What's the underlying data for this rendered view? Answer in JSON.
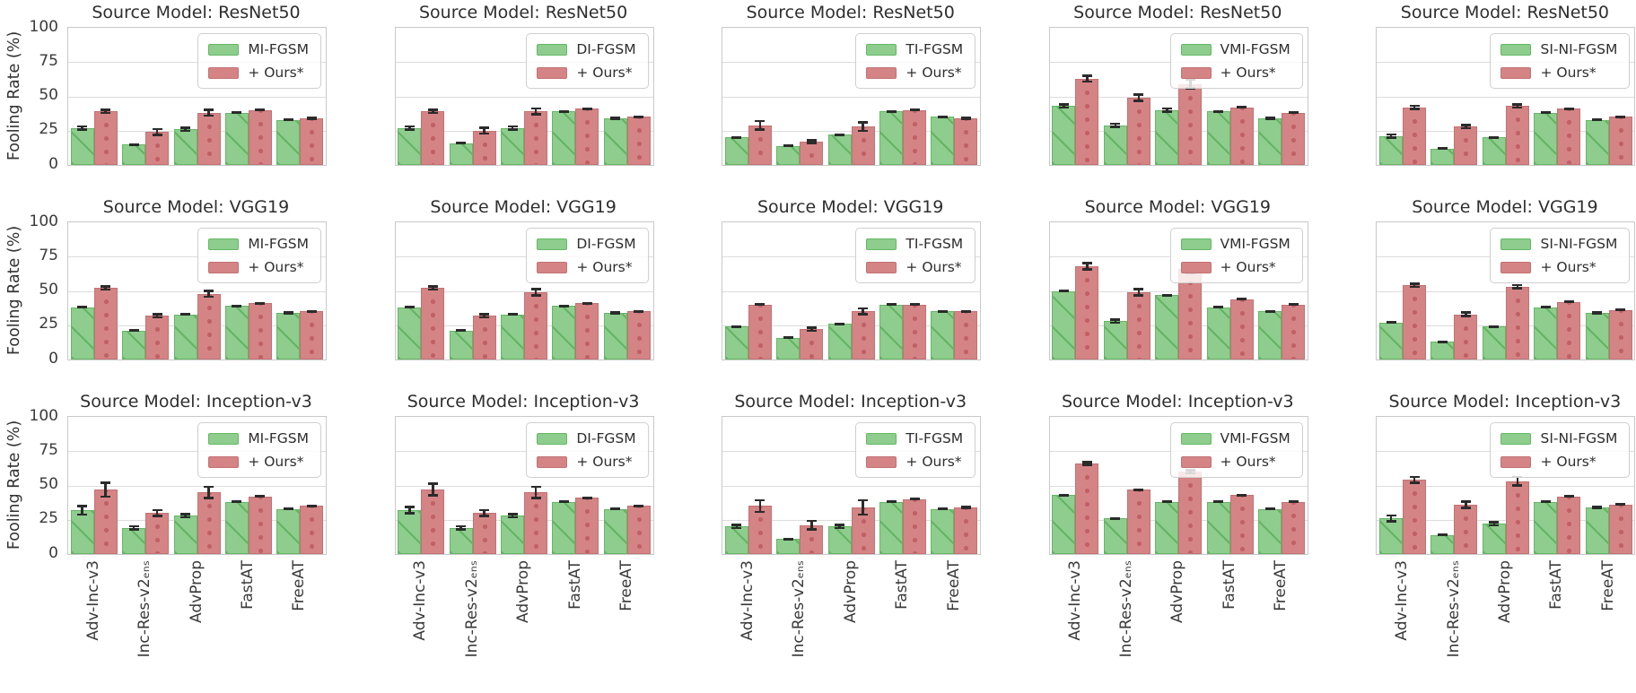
{
  "figure": {
    "ylabel": "Fooling Rate (%)",
    "row_titles": [
      "Source Model: ResNet50",
      "Source Model: VGG19",
      "Source Model: Inception-v3"
    ],
    "column_methods": [
      "MI-FGSM",
      "DI-FGSM",
      "TI-FGSM",
      "VMI-FGSM",
      "SI-NI-FGSM"
    ],
    "ours_label": "+ Ours*"
  },
  "chart_data": {
    "type": "bar",
    "layout": {
      "rows": 3,
      "cols": 5
    },
    "ylabel": "Fooling Rate (%)",
    "ylim": [
      0,
      100
    ],
    "yticks": [
      0,
      25,
      50,
      75,
      100
    ],
    "grid": true,
    "legend_position": "upper right",
    "categories": [
      "Adv-Inc-v3",
      "Inc-Res-v2ₑₙₛ",
      "AdvProp",
      "FastAT",
      "FreeAT"
    ],
    "colors": {
      "baseline_fill": "#8ecd8e",
      "baseline_edge": "#63b863",
      "ours_fill": "#d58486",
      "ours_edge": "#c37173",
      "error_bar": "#2b2b2b",
      "grid_line": "#dcdcdc",
      "frame": "#c9c9c9"
    },
    "subplots": [
      {
        "row": 0,
        "col": 0,
        "title": "Source Model: ResNet50",
        "series": [
          {
            "name": "MI-FGSM",
            "values": [
              27,
              15,
              26,
              38,
              33
            ],
            "errors": [
              2,
              1,
              2,
              1,
              1
            ]
          },
          {
            "name": "+ Ours*",
            "values": [
              39,
              24,
              38,
              40,
              34
            ],
            "errors": [
              2,
              3,
              3,
              1,
              1
            ]
          }
        ]
      },
      {
        "row": 0,
        "col": 1,
        "title": "Source Model: ResNet50",
        "series": [
          {
            "name": "DI-FGSM",
            "values": [
              27,
              16,
              27,
              39,
              34
            ],
            "errors": [
              2,
              1,
              2,
              1,
              1
            ]
          },
          {
            "name": "+ Ours*",
            "values": [
              39,
              25,
              39,
              41,
              35
            ],
            "errors": [
              2,
              3,
              3,
              1,
              1
            ]
          }
        ]
      },
      {
        "row": 0,
        "col": 2,
        "title": "Source Model: ResNet50",
        "series": [
          {
            "name": "TI-FGSM",
            "values": [
              20,
              14,
              22,
              39,
              35
            ],
            "errors": [
              1,
              1,
              1,
              1,
              1
            ]
          },
          {
            "name": "+ Ours*",
            "values": [
              29,
              17,
              28,
              40,
              34
            ],
            "errors": [
              4,
              2,
              4,
              1,
              1
            ]
          }
        ]
      },
      {
        "row": 0,
        "col": 3,
        "title": "Source Model: ResNet50",
        "series": [
          {
            "name": "VMI-FGSM",
            "values": [
              43,
              29,
              40,
              39,
              34
            ],
            "errors": [
              2,
              2,
              2,
              1,
              1
            ]
          },
          {
            "name": "+ Ours*",
            "values": [
              63,
              49,
              59,
              42,
              38
            ],
            "errors": [
              3,
              3,
              4,
              1,
              1
            ]
          }
        ]
      },
      {
        "row": 0,
        "col": 4,
        "title": "Source Model: ResNet50",
        "series": [
          {
            "name": "SI-NI-FGSM",
            "values": [
              21,
              12,
              20,
              38,
              33
            ],
            "errors": [
              2,
              1,
              1,
              1,
              1
            ]
          },
          {
            "name": "+ Ours*",
            "values": [
              42,
              28,
              43,
              41,
              35
            ],
            "errors": [
              2,
              2,
              2,
              1,
              1
            ]
          }
        ]
      },
      {
        "row": 1,
        "col": 0,
        "title": "Source Model: VGG19",
        "series": [
          {
            "name": "MI-FGSM",
            "values": [
              38,
              21,
              33,
              39,
              34
            ],
            "errors": [
              1,
              1,
              1,
              1,
              1
            ]
          },
          {
            "name": "+ Ours*",
            "values": [
              52,
              32,
              48,
              41,
              35
            ],
            "errors": [
              2,
              2,
              3,
              1,
              1
            ]
          }
        ]
      },
      {
        "row": 1,
        "col": 1,
        "title": "Source Model: VGG19",
        "series": [
          {
            "name": "DI-FGSM",
            "values": [
              38,
              21,
              33,
              39,
              34
            ],
            "errors": [
              1,
              1,
              1,
              1,
              1
            ]
          },
          {
            "name": "+ Ours*",
            "values": [
              52,
              32,
              49,
              41,
              35
            ],
            "errors": [
              2,
              2,
              3,
              1,
              1
            ]
          }
        ]
      },
      {
        "row": 1,
        "col": 2,
        "title": "Source Model: VGG19",
        "series": [
          {
            "name": "TI-FGSM",
            "values": [
              24,
              16,
              26,
              40,
              35
            ],
            "errors": [
              1,
              1,
              1,
              1,
              1
            ]
          },
          {
            "name": "+ Ours*",
            "values": [
              40,
              22,
              35,
              40,
              35
            ],
            "errors": [
              1,
              2,
              3,
              1,
              1
            ]
          }
        ]
      },
      {
        "row": 1,
        "col": 3,
        "title": "Source Model: VGG19",
        "series": [
          {
            "name": "VMI-FGSM",
            "values": [
              50,
              28,
              47,
              38,
              35
            ],
            "errors": [
              1,
              2,
              1,
              1,
              1
            ]
          },
          {
            "name": "+ Ours*",
            "values": [
              68,
              49,
              66,
              44,
              40
            ],
            "errors": [
              3,
              3,
              4,
              1,
              1
            ]
          }
        ]
      },
      {
        "row": 1,
        "col": 4,
        "title": "Source Model: VGG19",
        "series": [
          {
            "name": "SI-NI-FGSM",
            "values": [
              27,
              13,
              24,
              38,
              34
            ],
            "errors": [
              1,
              1,
              1,
              1,
              1
            ]
          },
          {
            "name": "+ Ours*",
            "values": [
              54,
              33,
              53,
              42,
              36
            ],
            "errors": [
              2,
              2,
              2,
              1,
              1
            ]
          }
        ]
      },
      {
        "row": 2,
        "col": 0,
        "title": "Source Model: Inception-v3",
        "series": [
          {
            "name": "MI-FGSM",
            "values": [
              32,
              19,
              28,
              38,
              33
            ],
            "errors": [
              4,
              2,
              2,
              1,
              1
            ]
          },
          {
            "name": "+ Ours*",
            "values": [
              47,
              30,
              45,
              42,
              35
            ],
            "errors": [
              6,
              3,
              5,
              1,
              1
            ]
          }
        ]
      },
      {
        "row": 2,
        "col": 1,
        "title": "Source Model: Inception-v3",
        "series": [
          {
            "name": "DI-FGSM",
            "values": [
              32,
              19,
              28,
              38,
              33
            ],
            "errors": [
              3,
              2,
              2,
              1,
              1
            ]
          },
          {
            "name": "+ Ours*",
            "values": [
              47,
              30,
              45,
              41,
              35
            ],
            "errors": [
              5,
              3,
              5,
              1,
              1
            ]
          }
        ]
      },
      {
        "row": 2,
        "col": 2,
        "title": "Source Model: Inception-v3",
        "series": [
          {
            "name": "TI-FGSM",
            "values": [
              20,
              11,
              20,
              38,
              33
            ],
            "errors": [
              2,
              1,
              2,
              1,
              1
            ]
          },
          {
            "name": "+ Ours*",
            "values": [
              35,
              21,
              34,
              40,
              34
            ],
            "errors": [
              5,
              4,
              6,
              1,
              1
            ]
          }
        ]
      },
      {
        "row": 2,
        "col": 3,
        "title": "Source Model: Inception-v3",
        "series": [
          {
            "name": "VMI-FGSM",
            "values": [
              43,
              26,
              38,
              38,
              33
            ],
            "errors": [
              1,
              1,
              1,
              1,
              1
            ]
          },
          {
            "name": "+ Ours*",
            "values": [
              66,
              47,
              60,
              43,
              38
            ],
            "errors": [
              2,
              1,
              2,
              1,
              1
            ]
          }
        ]
      },
      {
        "row": 2,
        "col": 4,
        "title": "Source Model: Inception-v3",
        "series": [
          {
            "name": "SI-NI-FGSM",
            "values": [
              26,
              14,
              22,
              38,
              34
            ],
            "errors": [
              3,
              1,
              2,
              1,
              1
            ]
          },
          {
            "name": "+ Ours*",
            "values": [
              54,
              36,
              53,
              42,
              36
            ],
            "errors": [
              3,
              3,
              4,
              1,
              1
            ]
          }
        ]
      }
    ]
  }
}
